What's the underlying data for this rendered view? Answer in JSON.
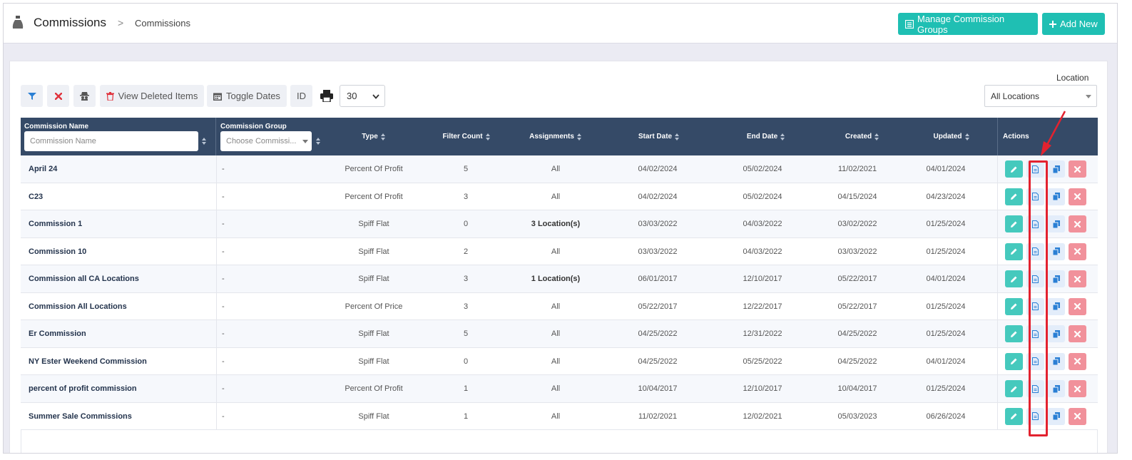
{
  "header": {
    "title": "Commissions",
    "separator": ">",
    "breadcrumb": "Commissions",
    "manage_button": "Manage Commission Groups",
    "add_button": "Add New"
  },
  "toolbar": {
    "view_deleted": "View Deleted Items",
    "toggle_dates": "Toggle Dates",
    "id_label": "ID",
    "per_page": "30",
    "location_label": "Location",
    "location_value": "All Locations"
  },
  "table": {
    "columns": {
      "name": "Commission Name",
      "name_placeholder": "Commission Name",
      "group": "Commission Group",
      "group_placeholder": "Choose Commissi...",
      "type": "Type",
      "filter_count": "Filter Count",
      "assignments": "Assignments",
      "start_date": "Start Date",
      "end_date": "End Date",
      "created": "Created",
      "updated": "Updated",
      "actions": "Actions"
    },
    "rows": [
      {
        "name": "April 24",
        "group": "-",
        "type": "Percent Of Profit",
        "filter_count": "5",
        "assignments": "All",
        "start": "04/02/2024",
        "end": "05/02/2024",
        "created": "11/02/2021",
        "updated": "04/01/2024"
      },
      {
        "name": "C23",
        "group": "-",
        "type": "Percent Of Profit",
        "filter_count": "3",
        "assignments": "All",
        "start": "04/02/2024",
        "end": "05/02/2024",
        "created": "04/15/2024",
        "updated": "04/23/2024"
      },
      {
        "name": "Commission 1",
        "group": "-",
        "type": "Spiff Flat",
        "filter_count": "0",
        "assignments": "3 Location(s)",
        "start": "03/03/2022",
        "end": "04/03/2022",
        "created": "03/02/2022",
        "updated": "01/25/2024"
      },
      {
        "name": "Commission 10",
        "group": "-",
        "type": "Spiff Flat",
        "filter_count": "2",
        "assignments": "All",
        "start": "03/03/2022",
        "end": "04/03/2022",
        "created": "03/03/2022",
        "updated": "01/25/2024"
      },
      {
        "name": "Commission all CA Locations",
        "group": "-",
        "type": "Spiff Flat",
        "filter_count": "3",
        "assignments": "1 Location(s)",
        "start": "06/01/2017",
        "end": "12/10/2017",
        "created": "05/22/2017",
        "updated": "04/01/2024"
      },
      {
        "name": "Commission All Locations",
        "group": "-",
        "type": "Percent Of Price",
        "filter_count": "3",
        "assignments": "All",
        "start": "05/22/2017",
        "end": "12/22/2017",
        "created": "05/22/2017",
        "updated": "01/25/2024"
      },
      {
        "name": "Er Commission",
        "group": "-",
        "type": "Spiff Flat",
        "filter_count": "5",
        "assignments": "All",
        "start": "04/25/2022",
        "end": "12/31/2022",
        "created": "04/25/2022",
        "updated": "01/25/2024"
      },
      {
        "name": "NY Ester Weekend Commission",
        "group": "-",
        "type": "Spiff Flat",
        "filter_count": "0",
        "assignments": "All",
        "start": "04/25/2022",
        "end": "05/25/2022",
        "created": "04/25/2022",
        "updated": "04/01/2024"
      },
      {
        "name": "percent of profit commission",
        "group": "-",
        "type": "Percent Of Profit",
        "filter_count": "1",
        "assignments": "All",
        "start": "10/04/2017",
        "end": "12/10/2017",
        "created": "10/04/2017",
        "updated": "01/25/2024"
      },
      {
        "name": "Summer Sale Commissions",
        "group": "-",
        "type": "Spiff Flat",
        "filter_count": "1",
        "assignments": "All",
        "start": "11/02/2021",
        "end": "12/02/2021",
        "created": "05/03/2023",
        "updated": "06/26/2024"
      }
    ]
  },
  "icons": {
    "edit": "pencil-icon",
    "view": "document-icon",
    "copy": "copy-icon",
    "delete": "close-icon"
  },
  "colors": {
    "teal": "#1fbfb3",
    "header_dark": "#354a67",
    "delete_red": "#f1919b",
    "annotation": "#e3222f"
  }
}
